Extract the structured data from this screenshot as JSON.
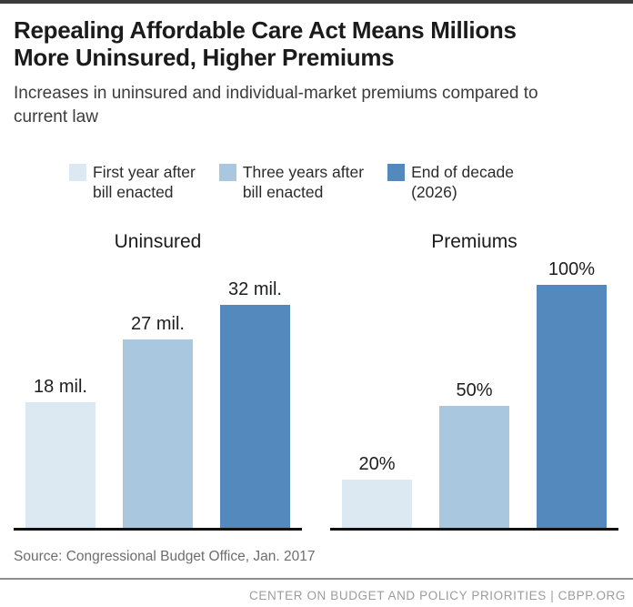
{
  "page": {
    "title": "Repealing Affordable Care Act Means Millions\nMore Uninsured, Higher Premiums",
    "subtitle": "Increases in uninsured and individual-market premiums compared to\ncurrent law",
    "source": "Source: Congressional Budget Office, Jan. 2017",
    "footer_credit": "CENTER ON BUDGET AND POLICY PRIORITIES | CBPP.ORG"
  },
  "legend": [
    {
      "label": "First year after\nbill enacted",
      "color": "#dce8f2"
    },
    {
      "label": "Three years after\nbill enacted",
      "color": "#aac7e0"
    },
    {
      "label": "End of decade\n(2026)",
      "color": "#5389bd"
    }
  ],
  "chart_data": [
    {
      "type": "bar",
      "title": "Uninsured",
      "categories": [
        "First year after bill enacted",
        "Three years after bill enacted",
        "End of decade (2026)"
      ],
      "values": [
        18,
        27,
        32
      ],
      "value_labels": [
        "18 mil.",
        "27 mil.",
        "32 mil."
      ],
      "ylim": [
        0,
        32
      ],
      "bar_colors": [
        "#dce8f2",
        "#aac7e0",
        "#5389bd"
      ],
      "grid": false,
      "legend_position": "top"
    },
    {
      "type": "bar",
      "title": "Premiums",
      "categories": [
        "First year after bill enacted",
        "Three years after bill enacted",
        "End of decade (2026)"
      ],
      "values": [
        20,
        50,
        100
      ],
      "value_labels": [
        "20%",
        "50%",
        "100%"
      ],
      "ylim": [
        0,
        100
      ],
      "bar_colors": [
        "#dce8f2",
        "#aac7e0",
        "#5389bd"
      ],
      "grid": false,
      "legend_position": "top"
    }
  ],
  "colors": {
    "accent_light": "#dce8f2",
    "accent_mid": "#aac7e0",
    "accent_dark": "#5389bd",
    "axis": "#111111",
    "top_border": "#3b3b3b"
  }
}
